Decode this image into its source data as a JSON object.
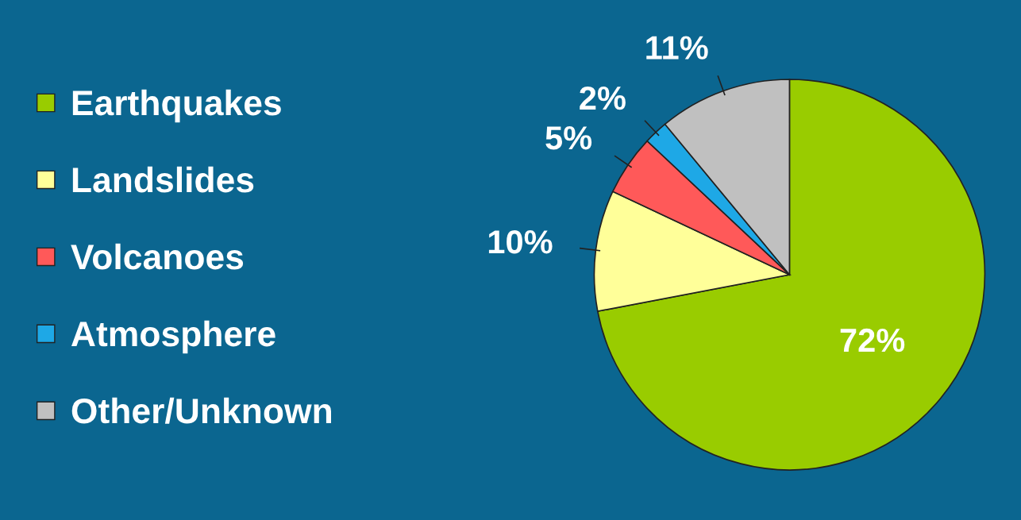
{
  "chart_data": {
    "type": "pie",
    "categories": [
      "Earthquakes",
      "Landslides",
      "Volcanoes",
      "Atmosphere",
      "Other/Unknown"
    ],
    "values": [
      72,
      10,
      5,
      2,
      11
    ],
    "colors": [
      "#99cc00",
      "#ffff99",
      "#ff5959",
      "#1ea8e6",
      "#c0c0c0"
    ],
    "value_labels": [
      "72%",
      "10%",
      "5%",
      "2%",
      "11%"
    ],
    "legend": "left"
  }
}
